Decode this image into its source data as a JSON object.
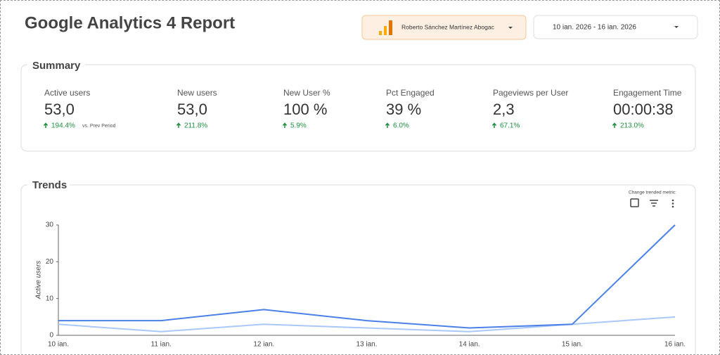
{
  "header": {
    "title": "Google Analytics 4 Report",
    "account": "Roberto Sánchez Martínez Abogac",
    "date_range": "10 ian. 2026 - 16 ian. 2026"
  },
  "summary": {
    "title": "Summary",
    "comparison": "vs. Prev Period",
    "metrics": [
      {
        "label": "Active users",
        "value": "53,0",
        "change": "194.4%"
      },
      {
        "label": "New users",
        "value": "53,0",
        "change": "211.8%"
      },
      {
        "label": "New User %",
        "value": "100 %",
        "change": "5.9%"
      },
      {
        "label": "Pct Engaged",
        "value": "39 %",
        "change": "6.0%"
      },
      {
        "label": "Pageviews per User",
        "value": "2,3",
        "change": "67.1%"
      },
      {
        "label": "Engagement Time",
        "value": "00:00:38",
        "change": "213.0%"
      }
    ]
  },
  "trends": {
    "title": "Trends",
    "control_label": "Change trended metric:"
  },
  "chart_data": {
    "type": "line",
    "y_label": "Active users",
    "categories": [
      "10 ian.",
      "11 ian.",
      "12 ian.",
      "13 ian.",
      "14 ian.",
      "15 ian.",
      "16 ian."
    ],
    "series": [
      {
        "color": "#4a80e8",
        "values": [
          4,
          4,
          7,
          4,
          2,
          3,
          30
        ]
      },
      {
        "color": "#a9c8f8",
        "values": [
          3,
          1,
          3,
          2,
          1,
          3,
          5
        ]
      }
    ],
    "ylim": [
      0,
      30
    ],
    "yticks": [
      0,
      10,
      20,
      30
    ],
    "grid": false
  }
}
